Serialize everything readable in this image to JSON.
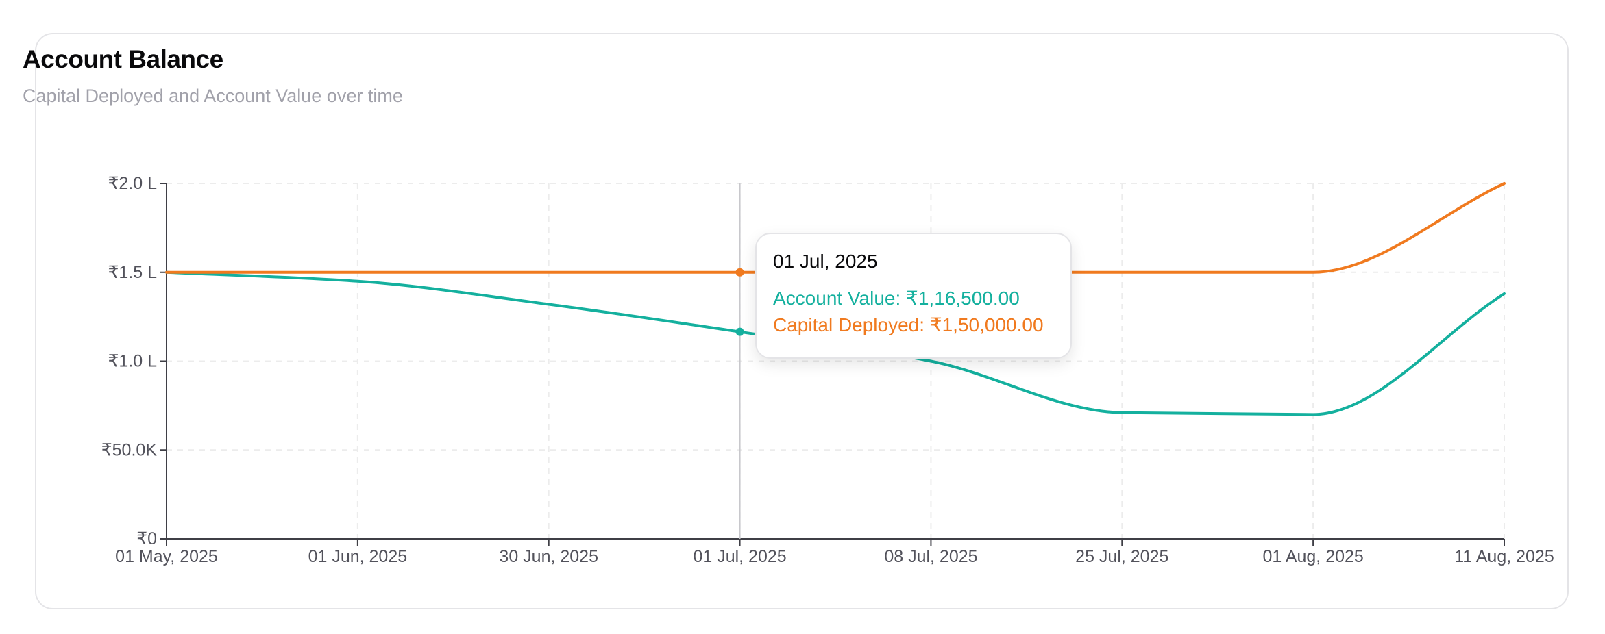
{
  "card": {
    "title": "Account Balance",
    "subtitle": "Capital Deployed and Account Value over time"
  },
  "colors": {
    "account_value": "#14b09e",
    "capital_deployed": "#f07a1f",
    "grid": "#ececec",
    "axis": "#3f3f46",
    "cursor": "#c8c8cc"
  },
  "tooltip": {
    "date": "01 Jul, 2025",
    "account_value_text": "Account Value: ₹1,16,500.00",
    "capital_deployed_text": "Capital Deployed: ₹1,50,000.00"
  },
  "chart_data": {
    "type": "line",
    "title": "Account Balance",
    "subtitle": "Capital Deployed and Account Value over time",
    "x": [
      "01 May, 2025",
      "01 Jun, 2025",
      "30 Jun, 2025",
      "01 Jul, 2025",
      "08 Jul, 2025",
      "25 Jul, 2025",
      "01 Aug, 2025",
      "11 Aug, 2025"
    ],
    "series": [
      {
        "name": "Account Value",
        "color_key": "account_value",
        "values": [
          150000,
          145000,
          132000,
          116500,
          100000,
          71000,
          70000,
          138000
        ]
      },
      {
        "name": "Capital Deployed",
        "color_key": "capital_deployed",
        "values": [
          150000,
          150000,
          150000,
          150000,
          150000,
          150000,
          150000,
          200000
        ]
      }
    ],
    "ylim": [
      0,
      200000
    ],
    "y_ticks": [
      0,
      50000,
      100000,
      150000,
      200000
    ],
    "y_tick_labels": [
      "₹0",
      "₹50.0K",
      "₹1.0 L",
      "₹1.5 L",
      "₹2.0 L"
    ],
    "grid": true,
    "active_index": 3
  }
}
